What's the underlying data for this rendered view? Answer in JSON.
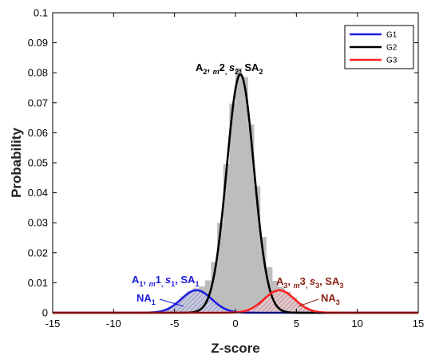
{
  "chart_data": {
    "type": "line",
    "xlabel": "Z-score",
    "ylabel": "Probability",
    "xlim": [
      -15,
      15
    ],
    "ylim": [
      0,
      0.1
    ],
    "x_ticks": [
      -15,
      -10,
      -5,
      0,
      5,
      10,
      15
    ],
    "y_ticks": [
      0,
      0.01,
      0.02,
      0.03,
      0.04,
      0.05,
      0.06,
      0.07,
      0.08,
      0.09,
      0.1
    ],
    "y_tick_labels": [
      "0",
      "0.01",
      "0.02",
      "0.03",
      "0.04",
      "0.05",
      "0.06",
      "0.07",
      "0.08",
      "0.09",
      "0.1"
    ],
    "legend_position": "top-right",
    "grid": false,
    "series": [
      {
        "name": "G1",
        "color": "#1f1fe0",
        "amplitude": 0.0075,
        "mean": -3.2,
        "sd": 1.25
      },
      {
        "name": "G2",
        "color": "#000000",
        "amplitude": 0.0795,
        "mean": 0.4,
        "sd": 1.12
      },
      {
        "name": "G3",
        "color": "#ff2020",
        "amplitude": 0.0075,
        "mean": 3.6,
        "sd": 1.25
      }
    ],
    "histogram": {
      "color": "#bdbdbd",
      "bin_width": 0.5
    },
    "annotations": {
      "g1_params": [
        "A",
        "1",
        ", ",
        "m",
        "1",
        ", ",
        "s",
        "1",
        ", SA",
        "1"
      ],
      "g2_params": [
        "A",
        "2",
        ", ",
        "m",
        "2",
        ", ",
        "s",
        "2",
        ", SA",
        "2"
      ],
      "g3_params": [
        "A",
        "3",
        ", ",
        "m",
        "3",
        ", ",
        "s",
        "3",
        ", SA",
        "3"
      ],
      "na1": [
        "NA",
        "1"
      ],
      "na3": [
        "NA",
        "3"
      ]
    },
    "annotation_colors": {
      "g1": "#1a1adb",
      "g2": "#000000",
      "g3": "#8a1f14"
    }
  }
}
